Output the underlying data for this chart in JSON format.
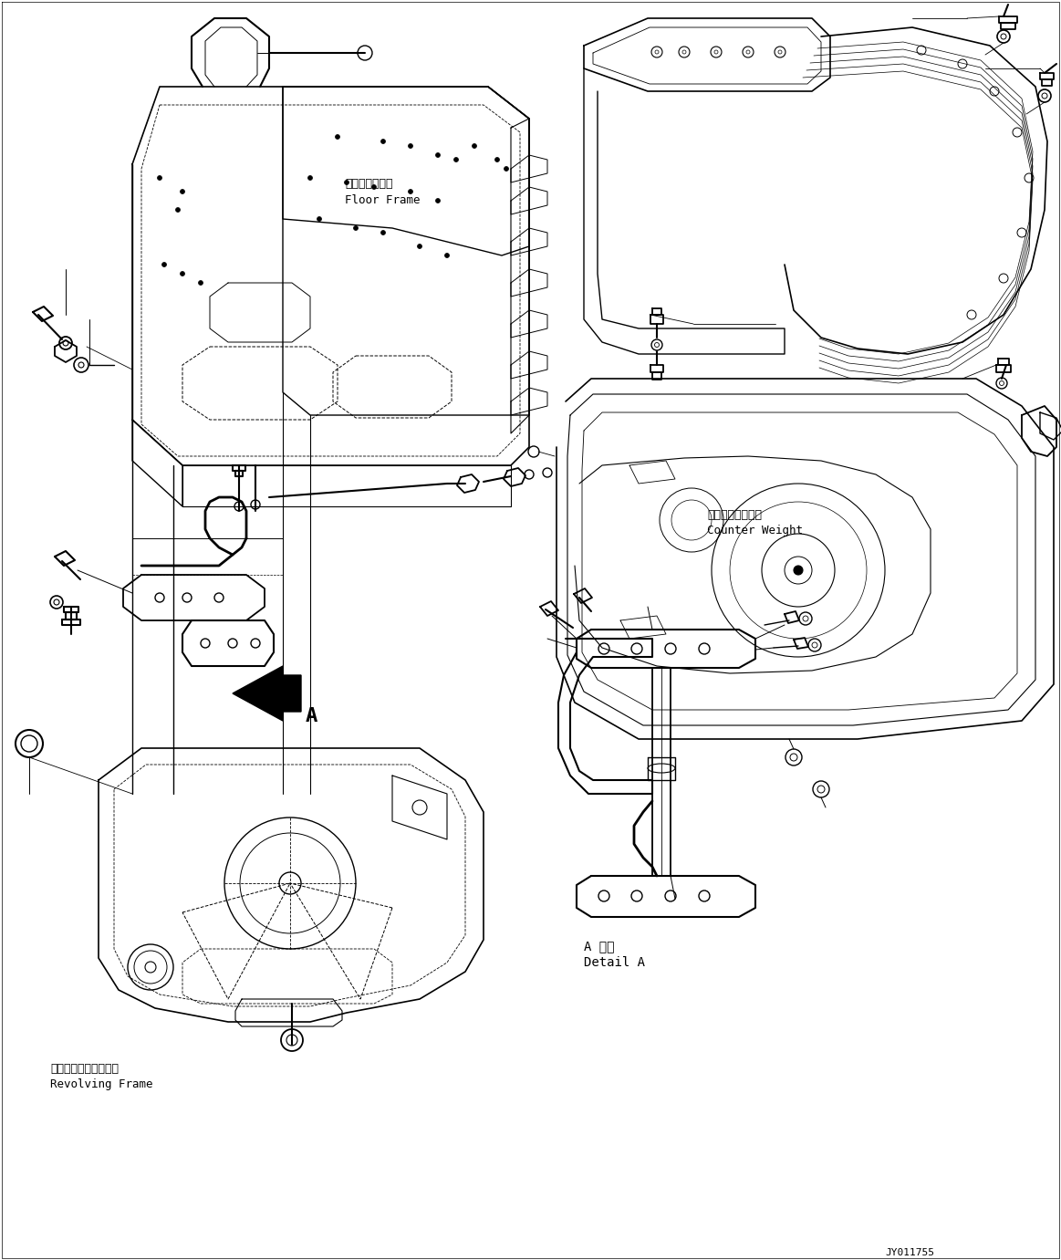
{
  "background_color": "#ffffff",
  "figsize": [
    11.63,
    13.81
  ],
  "dpi": 100,
  "labels": {
    "floor_frame_jp": "フロアフレーム",
    "floor_frame_en": "Floor Frame",
    "counter_weight_jp": "カウンタウェイト",
    "counter_weight_en": "Counter Weight",
    "revolving_frame_jp": "レボルビングフレーム",
    "revolving_frame_en": "Revolving Frame",
    "detail_a_jp": "A 詳細",
    "detail_a_en": "Detail A",
    "label_a": "A",
    "drawing_no": "JY011755"
  }
}
